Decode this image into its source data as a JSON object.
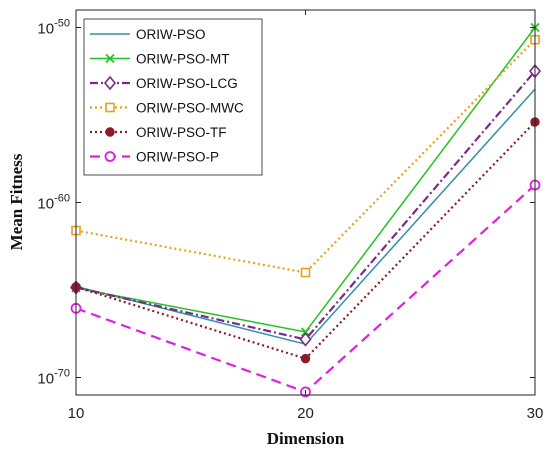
{
  "chart_data": {
    "type": "line",
    "xlabel": "Dimension",
    "ylabel": "Mean Fitness",
    "x": [
      10,
      20,
      30
    ],
    "xlim": [
      10,
      30
    ],
    "y_scale": "log",
    "ylim": [
      1e-71,
      1e-49
    ],
    "x_ticks": [
      "10",
      "20",
      "30"
    ],
    "y_ticks": [
      {
        "value": 1e-50,
        "base": "10",
        "exp": "-50"
      },
      {
        "value": 1e-60,
        "base": "10",
        "exp": "-60"
      },
      {
        "value": 1e-70,
        "base": "10",
        "exp": "-70"
      }
    ],
    "legend_position": "top-left",
    "grid": false,
    "series": [
      {
        "name": "ORIW-PSO",
        "values": [
          1.6e-65,
          8e-69,
          3e-54
        ],
        "color": "#2e8fa8",
        "dash": "solid",
        "marker": "none"
      },
      {
        "name": "ORIW-PSO-MT",
        "values": [
          1.3e-65,
          4e-68,
          1e-50
        ],
        "color": "#22c322",
        "dash": "solid",
        "marker": "x"
      },
      {
        "name": "ORIW-PSO-LCG",
        "values": [
          1.4e-65,
          1.5e-68,
          3.2e-53
        ],
        "color": "#7a2a8a",
        "dash": "dashdot",
        "marker": "diamond"
      },
      {
        "name": "ORIW-PSO-MWC",
        "values": [
          2.5e-62,
          1e-64,
          2e-51
        ],
        "color": "#e8a21a",
        "dash": "dot",
        "marker": "square"
      },
      {
        "name": "ORIW-PSO-TF",
        "values": [
          1.5e-65,
          1.2e-69,
          4e-56
        ],
        "color": "#8b1a2a",
        "dash": "dot",
        "marker": "circle-filled"
      },
      {
        "name": "ORIW-PSO-P",
        "values": [
          9e-67,
          1.5e-71,
          1e-59
        ],
        "color": "#e020e0",
        "dash": "dash",
        "marker": "circle-open"
      }
    ]
  }
}
